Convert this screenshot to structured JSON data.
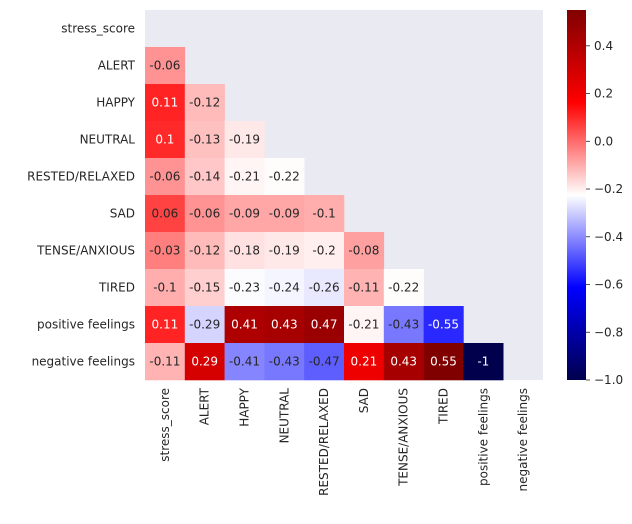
{
  "chart_data": {
    "type": "heatmap",
    "title": "",
    "xlabel": "",
    "ylabel": "",
    "labels": [
      "stress_score",
      "ALERT",
      "HAPPY",
      "NEUTRAL",
      "RESTED/RELAXED",
      "SAD",
      "TENSE/ANXIOUS",
      "TIRED",
      "positive feelings",
      "negative feelings"
    ],
    "values": [
      [
        null,
        null,
        null,
        null,
        null,
        null,
        null,
        null,
        null,
        null
      ],
      [
        -0.06,
        null,
        null,
        null,
        null,
        null,
        null,
        null,
        null,
        null
      ],
      [
        0.11,
        -0.12,
        null,
        null,
        null,
        null,
        null,
        null,
        null,
        null
      ],
      [
        0.1,
        -0.13,
        -0.19,
        null,
        null,
        null,
        null,
        null,
        null,
        null
      ],
      [
        -0.06,
        -0.14,
        -0.21,
        -0.22,
        null,
        null,
        null,
        null,
        null,
        null
      ],
      [
        0.06,
        -0.06,
        -0.09,
        -0.09,
        -0.1,
        null,
        null,
        null,
        null,
        null
      ],
      [
        -0.03,
        -0.12,
        -0.18,
        -0.19,
        -0.2,
        -0.08,
        null,
        null,
        null,
        null
      ],
      [
        -0.1,
        -0.15,
        -0.23,
        -0.24,
        -0.26,
        -0.11,
        -0.22,
        null,
        null,
        null
      ],
      [
        0.11,
        -0.29,
        0.41,
        0.43,
        0.47,
        -0.21,
        -0.43,
        -0.55,
        null,
        null
      ],
      [
        -0.11,
        0.29,
        -0.41,
        -0.43,
        -0.47,
        0.21,
        0.43,
        0.55,
        -1,
        null
      ]
    ],
    "annotations": [
      [
        null,
        null,
        null,
        null,
        null,
        null,
        null,
        null,
        null,
        null
      ],
      [
        "-0.06",
        null,
        null,
        null,
        null,
        null,
        null,
        null,
        null,
        null
      ],
      [
        "0.11",
        "-0.12",
        null,
        null,
        null,
        null,
        null,
        null,
        null,
        null
      ],
      [
        "0.1",
        "-0.13",
        "-0.19",
        null,
        null,
        null,
        null,
        null,
        null,
        null
      ],
      [
        "-0.06",
        "-0.14",
        "-0.21",
        "-0.22",
        null,
        null,
        null,
        null,
        null,
        null
      ],
      [
        "0.06",
        "-0.06",
        "-0.09",
        "-0.09",
        "-0.1",
        null,
        null,
        null,
        null,
        null
      ],
      [
        "-0.03",
        "-0.12",
        "-0.18",
        "-0.19",
        "-0.2",
        "-0.08",
        null,
        null,
        null,
        null
      ],
      [
        "-0.1",
        "-0.15",
        "-0.23",
        "-0.24",
        "-0.26",
        "-0.11",
        "-0.22",
        null,
        null,
        null
      ],
      [
        "0.11",
        "-0.29",
        "0.41",
        "0.43",
        "0.47",
        "-0.21",
        "-0.43",
        "-0.55",
        null,
        null
      ],
      [
        "-0.11",
        "0.29",
        "-0.41",
        "-0.43",
        "-0.47",
        "0.21",
        "0.43",
        "0.55",
        "-1",
        null
      ]
    ],
    "colormap": "seismic",
    "vmin": -1.0,
    "vmax": 0.55,
    "colorbar": {
      "ticks": [
        0.4,
        0.2,
        0.0,
        -0.2,
        -0.4,
        -0.6,
        -0.8,
        -1.0
      ],
      "tick_labels": [
        "0.4",
        "0.2",
        "0.0",
        "−0.2",
        "−0.4",
        "−0.6",
        "−0.8",
        "−1.0"
      ]
    },
    "mask": "upper-triangle-including-diagonal",
    "background_color": "#eaeaf2"
  }
}
